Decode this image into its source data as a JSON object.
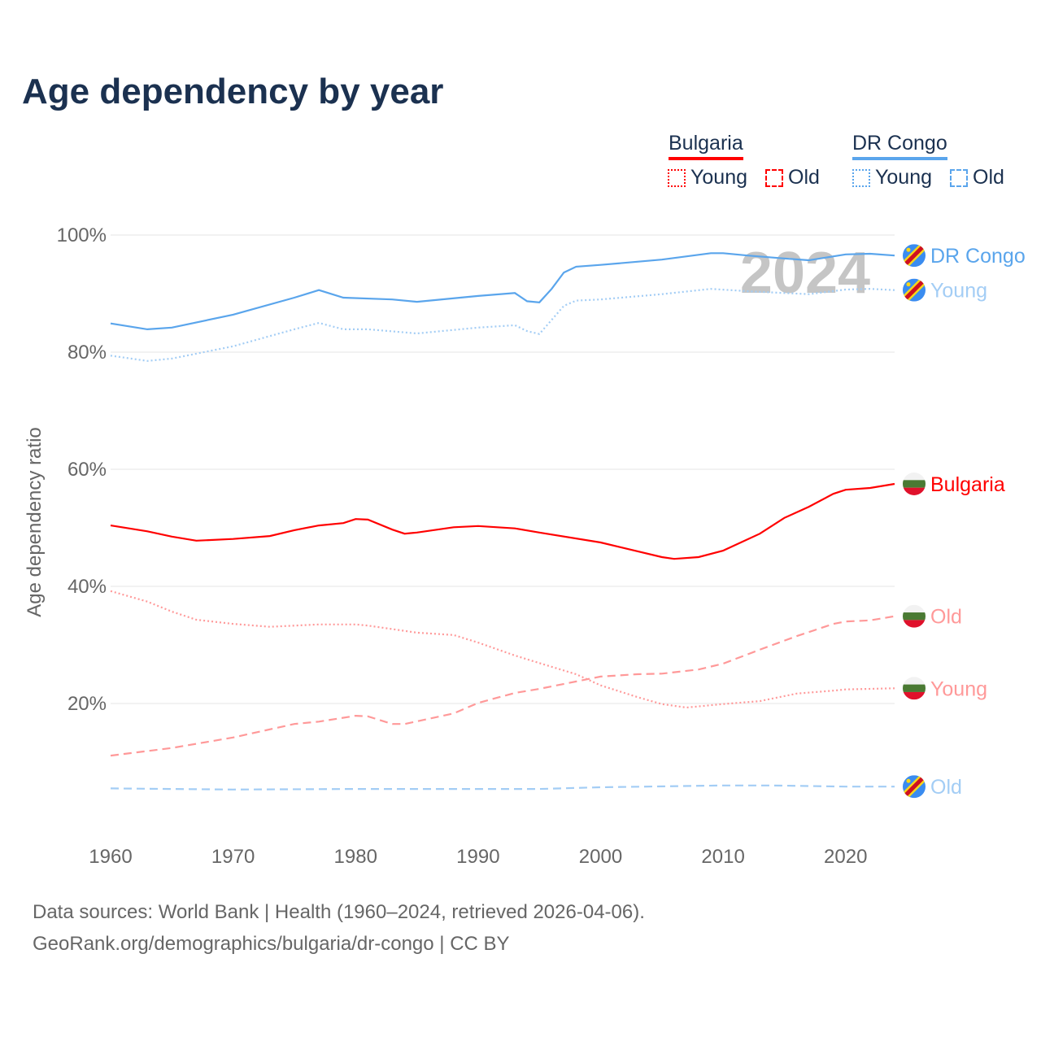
{
  "title": "Age dependency by year",
  "legend": {
    "groups": [
      {
        "name": "Bulgaria",
        "color": "#ff0000",
        "items": [
          "Young",
          "Old"
        ]
      },
      {
        "name": "DR Congo",
        "color": "#5aa5ec",
        "items": [
          "Young",
          "Old"
        ]
      }
    ]
  },
  "year_watermark": "2024",
  "footer": {
    "line1": "Data sources: World Bank | Health (1960–2024, retrieved 2026-04-06).",
    "line2": "GeoRank.org/demographics/bulgaria/dr-congo | CC BY"
  },
  "chart_data": {
    "type": "line",
    "title": "Age dependency by year",
    "xlabel": "",
    "ylabel": "Age dependency ratio",
    "xlim": [
      1960,
      2024
    ],
    "ylim": [
      0,
      100
    ],
    "x_ticks": [
      "1960",
      "1970",
      "1980",
      "1990",
      "2000",
      "2010",
      "2020"
    ],
    "y_ticks": [
      "20%",
      "40%",
      "60%",
      "80%",
      "100%"
    ],
    "grid": true,
    "legend_position": "top-right",
    "series": [
      {
        "name": "DR Congo",
        "label": "DR Congo",
        "color": "#5aa5ec",
        "style": "solid",
        "flag": "dr-congo",
        "x": [
          1960,
          1963,
          1965,
          1970,
          1975,
          1977,
          1979,
          1983,
          1985,
          1990,
          1993,
          1994,
          1995,
          1996,
          1997,
          1998,
          2000,
          2005,
          2009,
          2010,
          2012,
          2015,
          2017,
          2020,
          2022,
          2024
        ],
        "y": [
          84.9,
          83.9,
          84.2,
          86.4,
          89.3,
          90.6,
          89.3,
          89.0,
          88.6,
          89.6,
          90.1,
          88.7,
          88.5,
          90.8,
          93.6,
          94.6,
          94.9,
          95.8,
          96.9,
          96.9,
          96.5,
          96.0,
          95.7,
          96.7,
          96.8,
          96.5
        ]
      },
      {
        "name": "DR Congo Young",
        "label": "Young",
        "color": "#a3cdf5",
        "style": "dotted",
        "flag": "dr-congo",
        "x": [
          1960,
          1963,
          1965,
          1970,
          1975,
          1977,
          1979,
          1981,
          1985,
          1990,
          1993,
          1994,
          1995,
          1997,
          1998,
          2000,
          2005,
          2009,
          2012,
          2015,
          2017,
          2020,
          2022,
          2024
        ],
        "y": [
          79.4,
          78.5,
          78.9,
          81.0,
          83.9,
          85.0,
          83.9,
          83.9,
          83.2,
          84.2,
          84.6,
          83.6,
          83.1,
          87.9,
          88.8,
          89.0,
          89.9,
          90.8,
          90.4,
          90.1,
          89.9,
          90.7,
          90.8,
          90.6
        ]
      },
      {
        "name": "DR Congo Old",
        "label": "Old",
        "color": "#a3cdf5",
        "style": "dashed",
        "flag": "dr-congo",
        "x": [
          1960,
          1970,
          1980,
          1995,
          2000,
          2010,
          2014,
          2020,
          2024
        ],
        "y": [
          5.5,
          5.3,
          5.4,
          5.4,
          5.7,
          6.0,
          6.0,
          5.8,
          5.8
        ]
      },
      {
        "name": "Bulgaria",
        "label": "Bulgaria",
        "color": "#ff0000",
        "style": "solid",
        "flag": "bulgaria",
        "x": [
          1960,
          1963,
          1965,
          1967,
          1970,
          1973,
          1975,
          1977,
          1979,
          1980,
          1981,
          1983,
          1984,
          1985,
          1988,
          1990,
          1993,
          1995,
          2000,
          2003,
          2005,
          2006,
          2008,
          2010,
          2013,
          2015,
          2017,
          2019,
          2020,
          2022,
          2024
        ],
        "y": [
          50.4,
          49.4,
          48.5,
          47.8,
          48.1,
          48.6,
          49.6,
          50.4,
          50.8,
          51.5,
          51.4,
          49.7,
          49.0,
          49.2,
          50.1,
          50.3,
          49.9,
          49.2,
          47.5,
          46.0,
          45.0,
          44.7,
          45.0,
          46.1,
          49.0,
          51.7,
          53.6,
          55.8,
          56.5,
          56.8,
          57.5
        ]
      },
      {
        "name": "Bulgaria Old",
        "label": "Old",
        "color": "#ff9999",
        "style": "dashed",
        "flag": "bulgaria",
        "x": [
          1960,
          1965,
          1970,
          1975,
          1977,
          1980,
          1981,
          1983,
          1984,
          1988,
          1990,
          1993,
          1995,
          2000,
          2003,
          2005,
          2008,
          2010,
          2013,
          2016,
          2019,
          2020,
          2022,
          2024
        ],
        "y": [
          11.1,
          12.4,
          14.2,
          16.5,
          16.9,
          17.9,
          17.8,
          16.5,
          16.5,
          18.3,
          20.1,
          21.8,
          22.5,
          24.6,
          25.0,
          25.1,
          25.8,
          26.8,
          29.2,
          31.5,
          33.6,
          34.0,
          34.2,
          34.9
        ]
      },
      {
        "name": "Bulgaria Young",
        "label": "Young",
        "color": "#ff9999",
        "style": "dotted",
        "flag": "bulgaria",
        "x": [
          1960,
          1963,
          1965,
          1967,
          1970,
          1973,
          1977,
          1980,
          1981,
          1985,
          1988,
          1990,
          1993,
          1995,
          1998,
          2000,
          2003,
          2005,
          2007,
          2010,
          2013,
          2016,
          2019,
          2020,
          2024
        ],
        "y": [
          39.2,
          37.4,
          35.7,
          34.3,
          33.6,
          33.1,
          33.5,
          33.5,
          33.3,
          32.1,
          31.7,
          30.4,
          28.2,
          26.9,
          25.0,
          23.1,
          21.1,
          19.9,
          19.3,
          19.9,
          20.4,
          21.7,
          22.2,
          22.4,
          22.6
        ]
      }
    ]
  }
}
